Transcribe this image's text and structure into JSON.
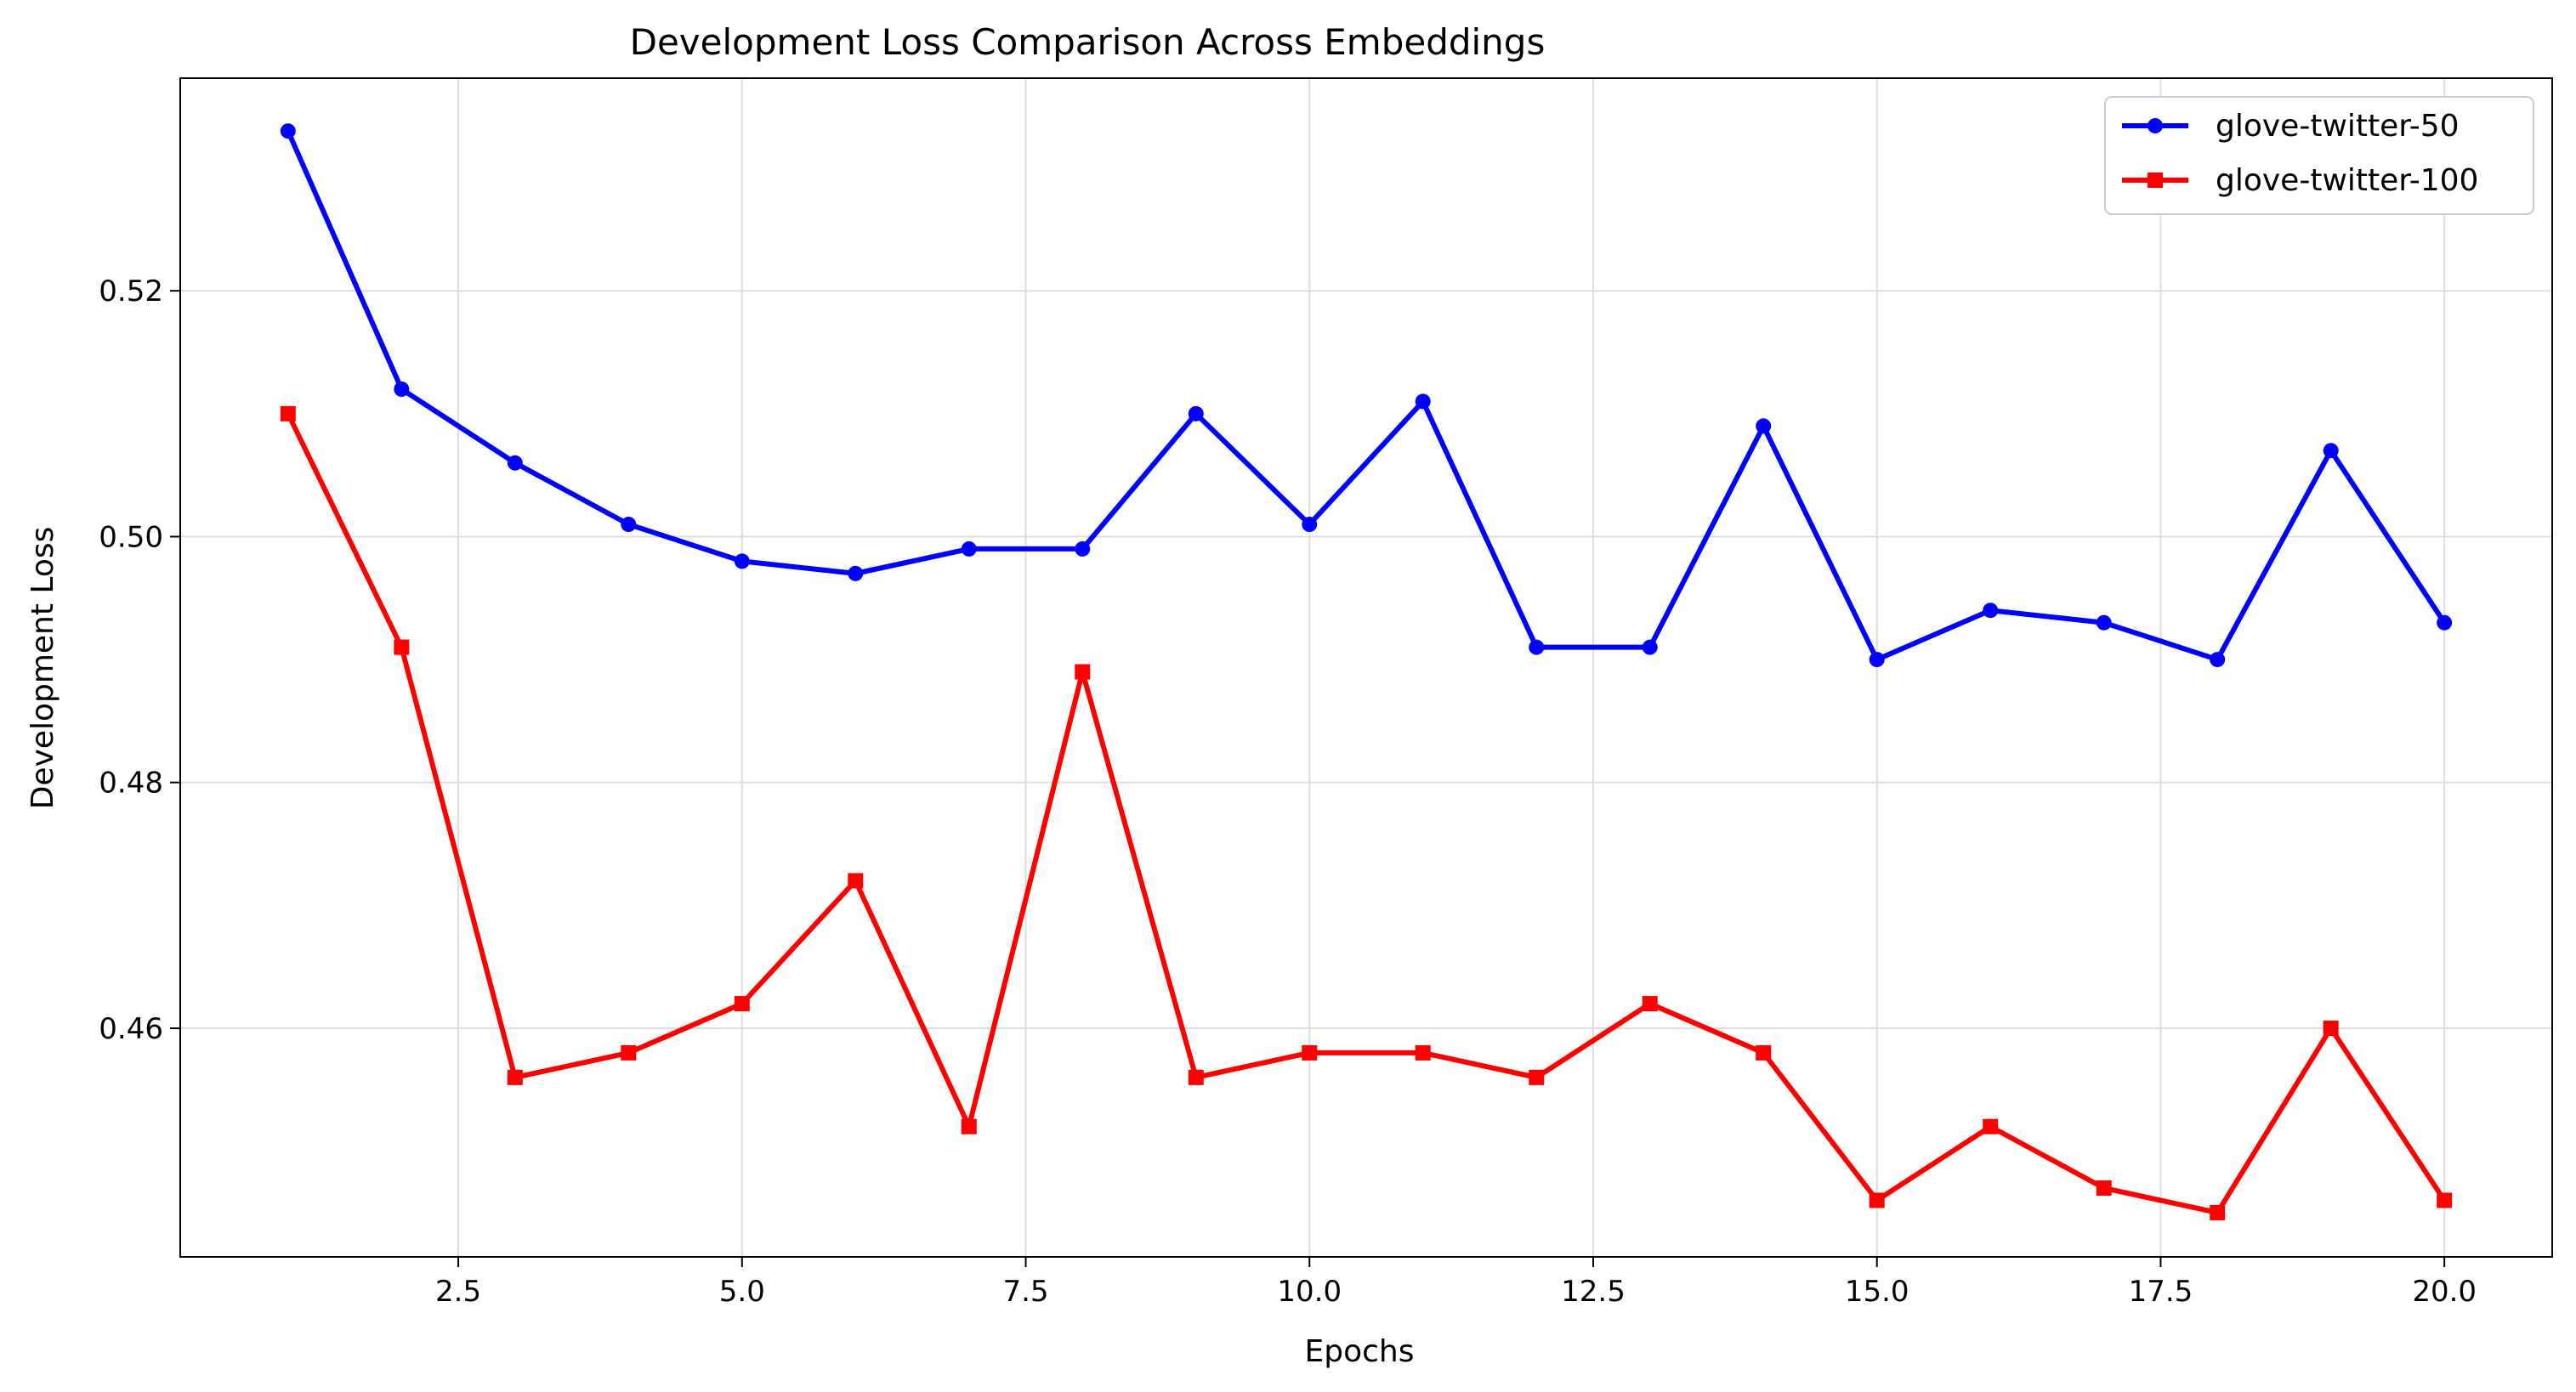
{
  "chart_data": {
    "type": "line",
    "title": "Development Loss Comparison Across Embeddings",
    "xlabel": "Epochs",
    "ylabel": "Development Loss",
    "x": [
      1,
      2,
      3,
      4,
      5,
      6,
      7,
      8,
      9,
      10,
      11,
      12,
      13,
      14,
      15,
      16,
      17,
      18,
      19,
      20
    ],
    "xlim": [
      0.05,
      20.95
    ],
    "ylim": [
      0.4414,
      0.5373
    ],
    "x_ticks": [
      2.5,
      5.0,
      7.5,
      10.0,
      12.5,
      15.0,
      17.5,
      20.0
    ],
    "x_tick_labels": [
      "2.5",
      "5.0",
      "7.5",
      "10.0",
      "12.5",
      "15.0",
      "17.5",
      "20.0"
    ],
    "y_ticks": [
      0.46,
      0.48,
      0.5,
      0.52
    ],
    "y_tick_labels": [
      "0.46",
      "0.48",
      "0.50",
      "0.52"
    ],
    "grid": true,
    "legend_position": "top-right",
    "series": [
      {
        "name": "glove-twitter-50",
        "color": "#0000ff",
        "marker": "circle",
        "values": [
          0.533,
          0.512,
          0.506,
          0.501,
          0.498,
          0.497,
          0.499,
          0.499,
          0.51,
          0.501,
          0.511,
          0.491,
          0.491,
          0.509,
          0.49,
          0.494,
          0.493,
          0.49,
          0.507,
          0.493
        ]
      },
      {
        "name": "glove-twitter-100",
        "color": "#ff0000",
        "marker": "square",
        "values": [
          0.51,
          0.491,
          0.456,
          0.458,
          0.462,
          0.472,
          0.452,
          0.489,
          0.456,
          0.458,
          0.458,
          0.456,
          0.462,
          0.458,
          0.446,
          0.452,
          0.447,
          0.445,
          0.46,
          0.446
        ]
      }
    ]
  }
}
